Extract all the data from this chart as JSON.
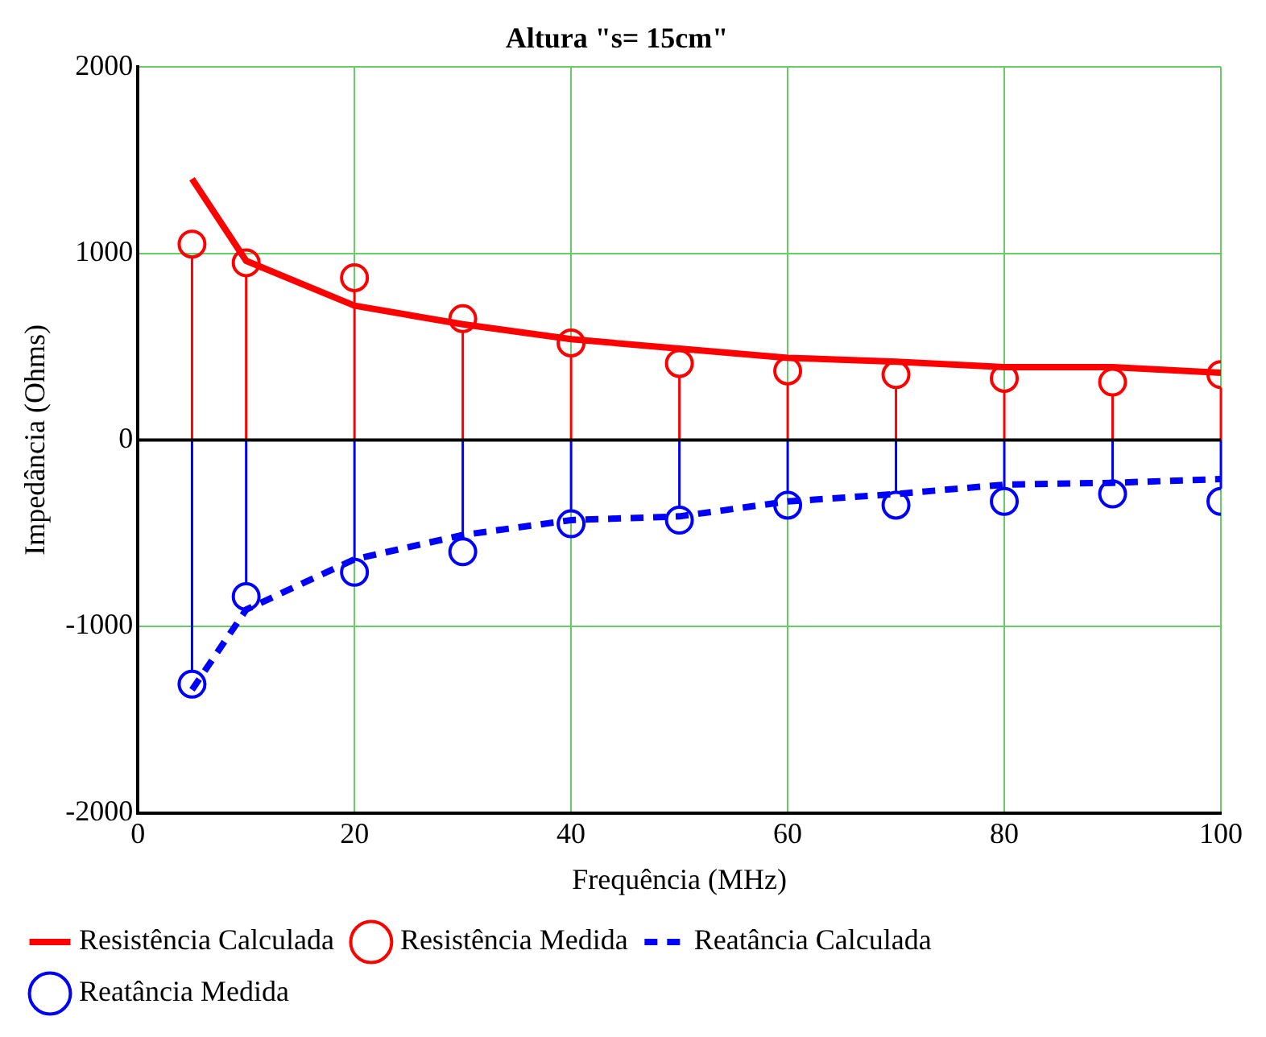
{
  "chart_data": {
    "type": "line",
    "title": "Altura \"s= 15cm\"",
    "xlabel": "Frequência (MHz)",
    "ylabel": "Impedância (Ohms)",
    "x": [
      5,
      10,
      20,
      30,
      40,
      50,
      60,
      70,
      80,
      90,
      100
    ],
    "xlim": [
      0,
      100
    ],
    "xticks": [
      0,
      20,
      40,
      60,
      80,
      100
    ],
    "ylim": [
      -2000,
      2000
    ],
    "yticks": [
      -2000,
      -1000,
      0,
      1000,
      2000
    ],
    "grid": true,
    "legend": "bottom",
    "ref_lines": [
      {
        "axis": "y",
        "value": 0,
        "color": "#000000"
      }
    ],
    "series": [
      {
        "name": "Resistência Calculada",
        "type": "line",
        "line_style": "solid",
        "marker": "none",
        "color": "#ff0000",
        "values": [
          1400,
          960,
          720,
          620,
          540,
          490,
          440,
          420,
          390,
          390,
          360
        ]
      },
      {
        "name": "Resistência Medida",
        "type": "lollipop",
        "marker": "circle",
        "color": "#ff0000",
        "values": [
          1050,
          950,
          870,
          650,
          520,
          410,
          370,
          350,
          330,
          310,
          350
        ]
      },
      {
        "name": "Reatância Calculada",
        "type": "line",
        "line_style": "dashed",
        "marker": "none",
        "color": "#0000ff",
        "values": [
          -1340,
          -910,
          -640,
          -510,
          -430,
          -410,
          -330,
          -290,
          -240,
          -230,
          -210
        ]
      },
      {
        "name": "Reatância Medida",
        "type": "lollipop",
        "marker": "circle",
        "color": "#0000ff",
        "values": [
          -1310,
          -840,
          -710,
          -600,
          -450,
          -430,
          -350,
          -350,
          -330,
          -290,
          -330
        ]
      }
    ]
  }
}
